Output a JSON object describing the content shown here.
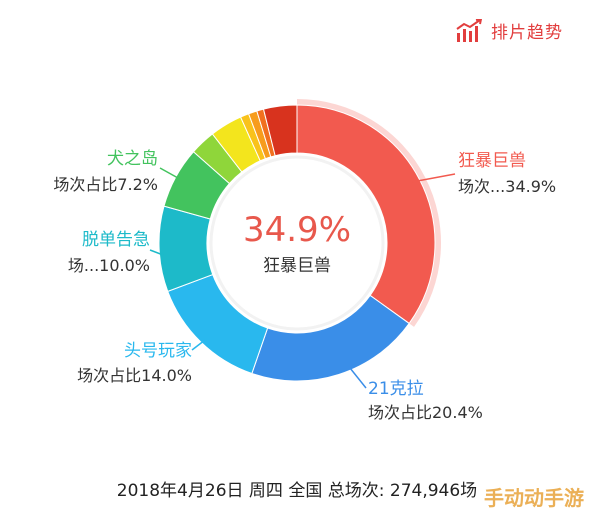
{
  "brand": {
    "label": "排片趋势",
    "icon": "bar-trend-icon",
    "color": "#e23e3e"
  },
  "center": {
    "value": "34.9%",
    "label": "狂暴巨兽"
  },
  "footer": {
    "date": "2018年4月26日",
    "weekday": "周四",
    "scope": "全国",
    "total_label": "总场次:",
    "total_value": "274,946场"
  },
  "watermark": "手动动手游",
  "chart_data": {
    "type": "pie",
    "variant": "donut",
    "highlighted": "狂暴巨兽",
    "slices": [
      {
        "name": "狂暴巨兽",
        "value": 34.9,
        "color": "#f25a4f",
        "label_name": "狂暴巨兽",
        "label_value": "场次...34.9%"
      },
      {
        "name": "21克拉",
        "value": 20.4,
        "color": "#3a8ee8",
        "label_name": "21克拉",
        "label_value": "场次占比20.4%"
      },
      {
        "name": "头号玩家",
        "value": 14.0,
        "color": "#29b8ee",
        "label_name": "头号玩家",
        "label_value": "场次占比14.0%"
      },
      {
        "name": "脱单告急",
        "value": 10.0,
        "color": "#1dbac9",
        "label_name": "脱单告急",
        "label_value": "场...10.0%"
      },
      {
        "name": "犬之岛",
        "value": 7.2,
        "color": "#43c35e",
        "label_name": "犬之岛",
        "label_value": "场次占比7.2%"
      },
      {
        "name": "other-1",
        "value": 3.0,
        "color": "#8fd63a"
      },
      {
        "name": "other-2",
        "value": 3.8,
        "color": "#f3e51d"
      },
      {
        "name": "other-3",
        "value": 1.0,
        "color": "#f9c21b"
      },
      {
        "name": "other-4",
        "value": 1.0,
        "color": "#f79c1c"
      },
      {
        "name": "other-5",
        "value": 0.8,
        "color": "#f1701f"
      },
      {
        "name": "other-6",
        "value": 3.9,
        "color": "#d8331e"
      }
    ]
  }
}
